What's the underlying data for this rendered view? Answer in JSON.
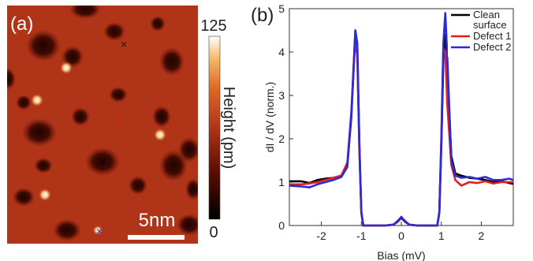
{
  "panel_a": {
    "label": "(a)",
    "colorbar": {
      "max_label": "125",
      "min_label": "0",
      "title": "Height (pm)",
      "range": [
        0,
        125
      ]
    },
    "scalebar_label": "5nm",
    "markers": [
      {
        "name": "Clean surface",
        "symbol": "×",
        "color": "#1a1a1a"
      },
      {
        "name": "Defect 1",
        "symbol": "×",
        "color": "#e0201e"
      },
      {
        "name": "Defect 2",
        "symbol": "×",
        "color": "#2b2bd8"
      }
    ],
    "colors": {
      "background": "#b03418",
      "dark_spot": "#280400",
      "bright_spot": "#fff3dc"
    }
  },
  "panel_b": {
    "label": "(b)"
  },
  "chart_data": {
    "type": "line",
    "title": "",
    "xlabel": "Bias (mV)",
    "ylabel": "dI / dV (norm.)",
    "xlim": [
      -2.8,
      2.8
    ],
    "ylim": [
      0,
      5
    ],
    "xticks": [
      -2,
      -1,
      0,
      1,
      2
    ],
    "yticks": [
      0,
      1,
      2,
      3,
      4,
      5
    ],
    "legend_position": "top-right",
    "x": [
      -2.8,
      -2.5,
      -2.3,
      -2.1,
      -1.9,
      -1.7,
      -1.5,
      -1.35,
      -1.25,
      -1.15,
      -1.1,
      -1.05,
      -1.0,
      -0.95,
      -0.9,
      -0.8,
      -0.6,
      -0.4,
      -0.2,
      -0.1,
      0.0,
      0.1,
      0.2,
      0.4,
      0.6,
      0.8,
      0.9,
      0.95,
      1.0,
      1.05,
      1.1,
      1.15,
      1.25,
      1.35,
      1.5,
      1.7,
      1.9,
      2.1,
      2.3,
      2.5,
      2.7,
      2.8
    ],
    "series": [
      {
        "name": "Clean surface",
        "color": "#000000",
        "values": [
          1.02,
          1.02,
          0.98,
          1.05,
          1.08,
          1.1,
          1.15,
          1.4,
          2.5,
          4.5,
          4.0,
          1.8,
          0.3,
          0.0,
          0.0,
          0.0,
          0.0,
          0.0,
          0.02,
          0.08,
          0.18,
          0.08,
          0.02,
          0.0,
          0.0,
          0.0,
          0.0,
          0.3,
          1.8,
          3.8,
          4.4,
          3.6,
          1.6,
          1.2,
          1.15,
          1.1,
          1.08,
          1.05,
          1.0,
          1.02,
          0.98,
          0.96
        ]
      },
      {
        "name": "Defect 1",
        "color": "#e0201e",
        "values": [
          0.95,
          0.95,
          0.97,
          1.0,
          1.05,
          1.1,
          1.15,
          1.45,
          2.6,
          4.3,
          3.9,
          1.7,
          0.3,
          0.0,
          0.0,
          0.0,
          0.0,
          0.0,
          0.02,
          0.1,
          0.19,
          0.1,
          0.02,
          0.0,
          0.0,
          0.0,
          0.0,
          0.3,
          2.0,
          4.1,
          4.0,
          2.8,
          1.4,
          1.05,
          0.92,
          1.0,
          0.98,
          1.02,
          0.97,
          1.0,
          1.0,
          1.0
        ]
      },
      {
        "name": "Defect 2",
        "color": "#2b2bd8",
        "values": [
          0.92,
          0.9,
          0.88,
          0.95,
          1.0,
          1.05,
          1.12,
          1.35,
          2.6,
          4.5,
          4.2,
          1.9,
          0.3,
          0.0,
          0.0,
          0.0,
          0.0,
          0.0,
          0.02,
          0.09,
          0.2,
          0.09,
          0.02,
          0.0,
          0.0,
          0.0,
          0.0,
          0.3,
          1.9,
          4.2,
          4.9,
          3.9,
          1.5,
          1.15,
          1.1,
          1.12,
          1.08,
          1.12,
          1.05,
          1.05,
          1.08,
          1.05
        ]
      }
    ]
  }
}
